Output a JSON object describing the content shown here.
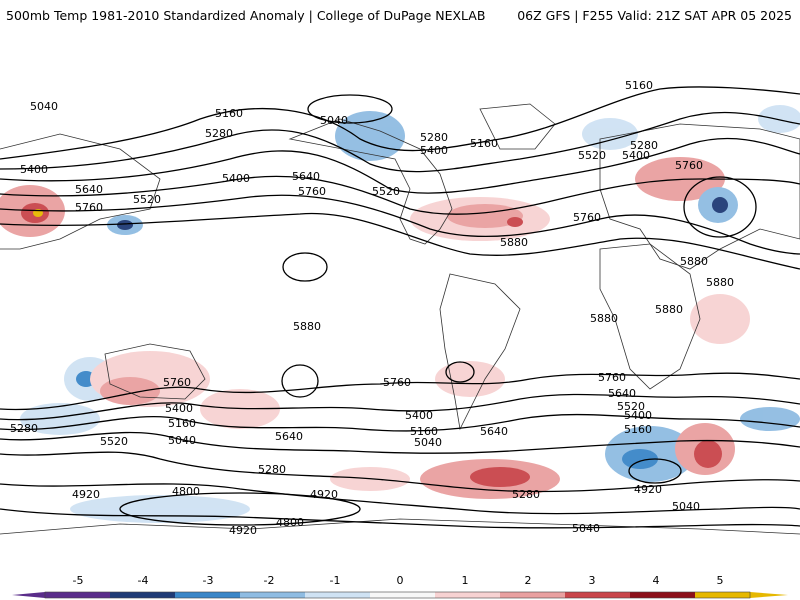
{
  "header": {
    "title": "500mb Temp 1981-2010 Standardized Anomaly | College of DuPage NEXLAB",
    "run": "06Z GFS | F255 Valid: 21Z SAT APR 05 2025"
  },
  "contour_labels": [
    "5160",
    "5040",
    "5040",
    "5160",
    "5280",
    "5280",
    "5400",
    "5160",
    "5520",
    "5400",
    "5280",
    "5760",
    "5400",
    "5640",
    "5760",
    "5400",
    "5520",
    "5640",
    "5760",
    "5520",
    "5880",
    "5760",
    "5880",
    "5880",
    "5880",
    "5880",
    "5880",
    "5760",
    "5760",
    "5400",
    "5160",
    "5040",
    "5520",
    "5640",
    "5400",
    "5160",
    "5040",
    "5640",
    "5280",
    "5280",
    "5760",
    "5640",
    "5520",
    "5400",
    "5160",
    "4920",
    "4920",
    "4800",
    "4800",
    "4920",
    "5040",
    "5280",
    "4920",
    "5040"
  ],
  "colorbar": {
    "ticks": [
      "-5",
      "-4",
      "-3",
      "-2",
      "-1",
      "0",
      "1",
      "2",
      "3",
      "4",
      "5"
    ],
    "colors": [
      "#5a2d8a",
      "#1f3a75",
      "#3a86c8",
      "#8fbce2",
      "#cfe2f3",
      "#f7f7f7",
      "#f7d2d2",
      "#e9a0a0",
      "#c9454a",
      "#8c0f1a",
      "#e6b800"
    ]
  }
}
